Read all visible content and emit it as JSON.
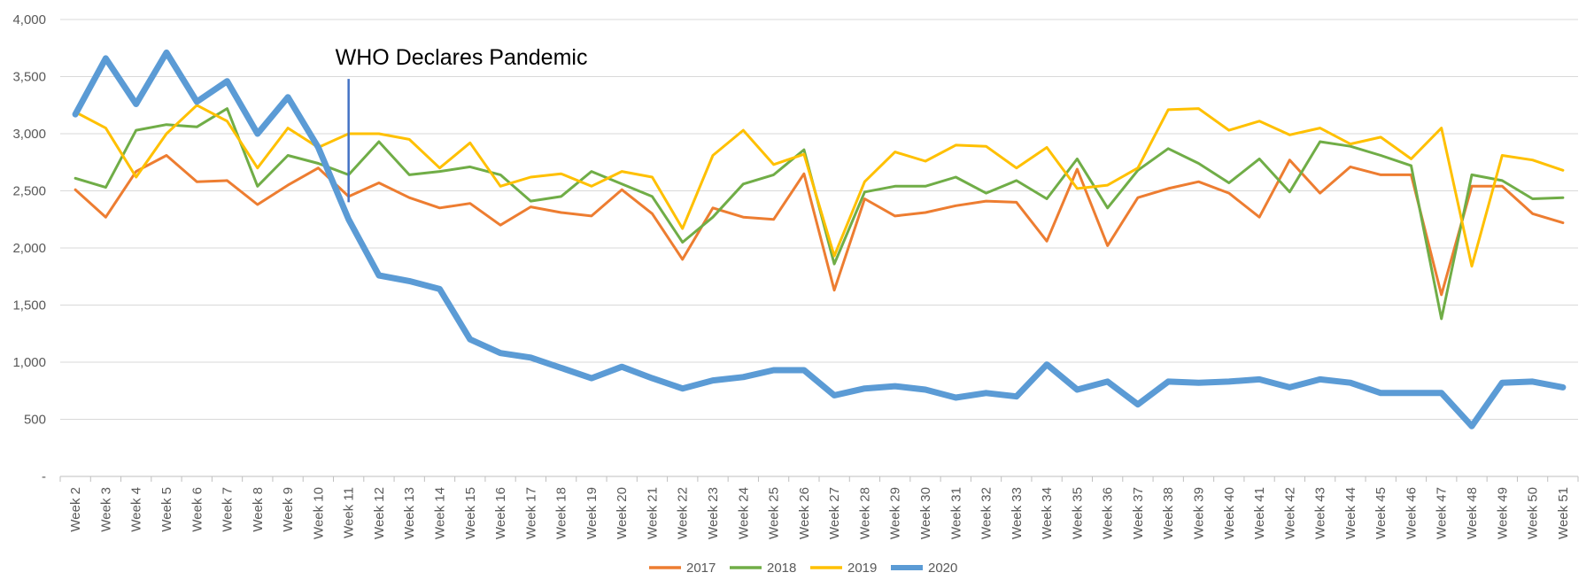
{
  "chart_data": {
    "type": "line",
    "title": "",
    "xlabel": "",
    "ylabel": "",
    "ylim": [
      0,
      4000
    ],
    "y_ticks": [
      0,
      500,
      1000,
      1500,
      2000,
      2500,
      3000,
      3500,
      4000
    ],
    "y_tick_labels": [
      "-",
      "500",
      "1,000",
      "1,500",
      "2,000",
      "2,500",
      "3,000",
      "3,500",
      "4,000"
    ],
    "grid": "horizontal",
    "legend_position": "bottom",
    "categories": [
      "Week 2",
      "Week 3",
      "Week 4",
      "Week 5",
      "Week 6",
      "Week 7",
      "Week 8",
      "Week 9",
      "Week 10",
      "Week 11",
      "Week 12",
      "Week 13",
      "Week 14",
      "Week 15",
      "Week 16",
      "Week 17",
      "Week 18",
      "Week 19",
      "Week 20",
      "Week 21",
      "Week 22",
      "Week 23",
      "Week 24",
      "Week 25",
      "Week 26",
      "Week 27",
      "Week 28",
      "Week 29",
      "Week 30",
      "Week 31",
      "Week 32",
      "Week 33",
      "Week 34",
      "Week 35",
      "Week 36",
      "Week 37",
      "Week 38",
      "Week 39",
      "Week 40",
      "Week 41",
      "Week 42",
      "Week 43",
      "Week 44",
      "Week 45",
      "Week 46",
      "Week 47",
      "Week 48",
      "Week 49",
      "Week 50",
      "Week 51"
    ],
    "series": [
      {
        "name": "2017",
        "color": "#ED7D31",
        "width": 3,
        "values": [
          2510,
          2270,
          2670,
          2810,
          2580,
          2590,
          2380,
          2550,
          2700,
          2450,
          2570,
          2440,
          2350,
          2390,
          2200,
          2360,
          2310,
          2280,
          2510,
          2300,
          1900,
          2350,
          2270,
          2250,
          2650,
          1630,
          2430,
          2280,
          2310,
          2370,
          2410,
          2400,
          2060,
          2690,
          2020,
          2440,
          2520,
          2580,
          2480,
          2270,
          2770,
          2480,
          2710,
          2640,
          2640,
          1590,
          2540,
          2540,
          2300,
          2220
        ]
      },
      {
        "name": "2018",
        "color": "#70AD47",
        "width": 3,
        "values": [
          2610,
          2530,
          3030,
          3080,
          3060,
          3220,
          2540,
          2810,
          2740,
          2640,
          2930,
          2640,
          2670,
          2710,
          2640,
          2410,
          2450,
          2670,
          2560,
          2450,
          2050,
          2270,
          2560,
          2640,
          2860,
          1860,
          2490,
          2540,
          2540,
          2620,
          2480,
          2590,
          2430,
          2780,
          2350,
          2680,
          2870,
          2740,
          2570,
          2780,
          2490,
          2930,
          2890,
          2810,
          2720,
          1380,
          2640,
          2590,
          2430,
          2440
        ]
      },
      {
        "name": "2019",
        "color": "#FFC000",
        "width": 3,
        "values": [
          3190,
          3050,
          2620,
          3000,
          3250,
          3110,
          2700,
          3050,
          2880,
          3000,
          3000,
          2950,
          2700,
          2920,
          2540,
          2620,
          2650,
          2540,
          2670,
          2620,
          2170,
          2810,
          3030,
          2730,
          2820,
          1930,
          2580,
          2840,
          2760,
          2900,
          2890,
          2700,
          2880,
          2520,
          2550,
          2700,
          3210,
          3220,
          3030,
          3110,
          2990,
          3050,
          2910,
          2970,
          2780,
          3050,
          1840,
          2810,
          2770,
          2680
        ]
      },
      {
        "name": "2020",
        "color": "#5B9BD5",
        "width": 7,
        "values": [
          3170,
          3660,
          3260,
          3710,
          3280,
          3460,
          3000,
          3320,
          2880,
          2250,
          1760,
          1710,
          1640,
          1200,
          1080,
          1040,
          950,
          860,
          960,
          860,
          770,
          840,
          870,
          930,
          930,
          710,
          770,
          790,
          760,
          690,
          730,
          700,
          980,
          760,
          830,
          630,
          830,
          820,
          830,
          850,
          780,
          850,
          820,
          730,
          730,
          730,
          440,
          820,
          830,
          780
        ]
      }
    ],
    "annotations": [
      {
        "text": "WHO Declares Pandemic",
        "x_category": "Week 11",
        "y_from": 2400,
        "y_to": 3480,
        "line_color": "#4472C4"
      }
    ]
  }
}
